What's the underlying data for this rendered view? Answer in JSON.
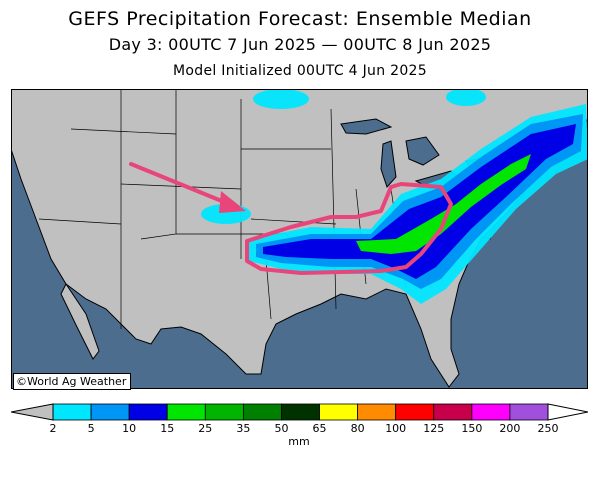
{
  "header": {
    "title": "GEFS Precipitation Forecast: Ensemble Median",
    "period": "Day 3: 00UTC 7 Jun 2025 — 00UTC 8 Jun 2025",
    "init": "Model Initialized 00UTC 4 Jun 2025"
  },
  "map": {
    "copyright": "©World Ag Weather",
    "annotation_color": "#e8457a",
    "land_color": "#c0c0c0",
    "water_color": "#4d6d8f"
  },
  "legend": {
    "unit": "mm",
    "ticks": [
      "2",
      "5",
      "10",
      "15",
      "25",
      "35",
      "50",
      "65",
      "80",
      "100",
      "125",
      "150",
      "200",
      "250"
    ],
    "colors": [
      "#00e6ff",
      "#0096f5",
      "#0000e6",
      "#00e600",
      "#00b400",
      "#008000",
      "#003200",
      "#ffff00",
      "#ff8c00",
      "#ff0000",
      "#c8004b",
      "#ff00ff",
      "#a050dc"
    ]
  }
}
